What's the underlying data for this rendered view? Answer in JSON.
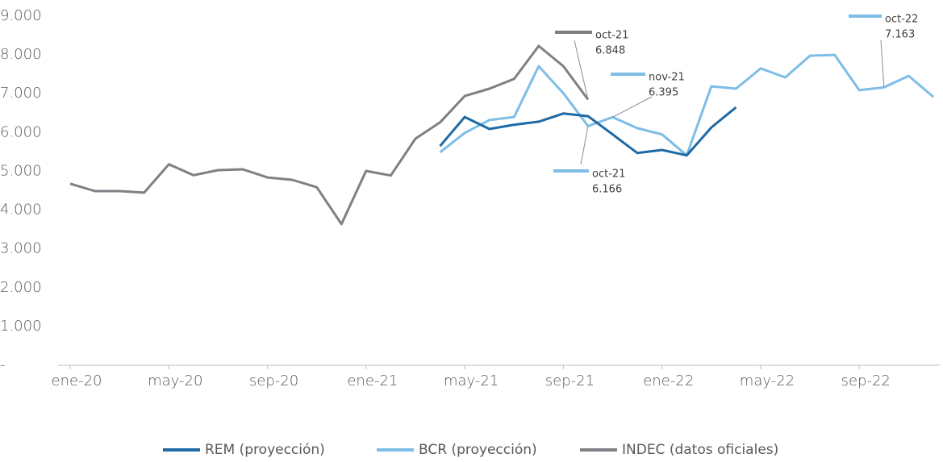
{
  "chart_data": {
    "type": "line",
    "categories": [
      "ene-20",
      null,
      null,
      null,
      "may-20",
      null,
      null,
      null,
      "sep-20",
      null,
      null,
      null,
      "ene-21",
      null,
      null,
      null,
      "may-21",
      null,
      null,
      null,
      "sep-21",
      null,
      null,
      null,
      "ene-22",
      null,
      null,
      null,
      "may-22",
      null,
      null,
      null,
      "sep-22",
      null,
      null,
      null
    ],
    "series": [
      {
        "name": "REM (proyección)",
        "color": "#1f6aa5",
        "values": [
          null,
          null,
          null,
          null,
          null,
          null,
          null,
          null,
          null,
          null,
          null,
          null,
          null,
          null,
          null,
          5650,
          6400,
          6090,
          6200,
          6280,
          6490,
          6420,
          5950,
          5470,
          5550,
          5410,
          6130,
          6650,
          null,
          null,
          null,
          null,
          null,
          null,
          null,
          null
        ]
      },
      {
        "name": "BCR (proyección)",
        "color": "#7dbde6",
        "values": [
          null,
          null,
          null,
          null,
          null,
          null,
          null,
          null,
          null,
          null,
          null,
          null,
          null,
          null,
          null,
          5490,
          5990,
          6320,
          6400,
          7710,
          7010,
          6166,
          6395,
          6110,
          5950,
          5410,
          7190,
          7130,
          7650,
          7420,
          7980,
          8000,
          7090,
          7163,
          7460,
          6920
        ]
      },
      {
        "name": "INDEC (datos oficiales)",
        "color": "#7f7f86",
        "values": [
          4680,
          4490,
          4490,
          4450,
          5180,
          4900,
          5030,
          5050,
          4840,
          4780,
          4590,
          3640,
          5010,
          4890,
          5840,
          6260,
          6940,
          7130,
          7380,
          8230,
          7710,
          6848,
          null,
          null,
          null,
          null,
          null,
          null,
          null,
          null,
          null,
          null,
          null,
          null,
          null,
          null
        ]
      }
    ],
    "ylim": [
      0,
      9000
    ],
    "yticks": [
      {
        "value": 0,
        "label": "-"
      },
      {
        "value": 1000,
        "label": "1.000"
      },
      {
        "value": 2000,
        "label": "2.000"
      },
      {
        "value": 3000,
        "label": "3.000"
      },
      {
        "value": 4000,
        "label": "4.000"
      },
      {
        "value": 5000,
        "label": "5.000"
      },
      {
        "value": 6000,
        "label": "6.000"
      },
      {
        "value": 7000,
        "label": "7.000"
      },
      {
        "value": 8000,
        "label": "8.000"
      },
      {
        "value": 9000,
        "label": "9.000"
      }
    ],
    "grid": false,
    "legend": "bottom",
    "annotations": [
      {
        "color": "#7f7f86",
        "text": [
          "oct-21",
          "6.848"
        ]
      },
      {
        "color": "#7dbde6",
        "text": [
          "nov-21",
          "6.395"
        ]
      },
      {
        "color": "#7dbde6",
        "text": [
          "oct-21",
          "6.166"
        ]
      },
      {
        "color": "#7dbde6",
        "text": [
          "oct-22",
          "7.163"
        ]
      }
    ]
  }
}
